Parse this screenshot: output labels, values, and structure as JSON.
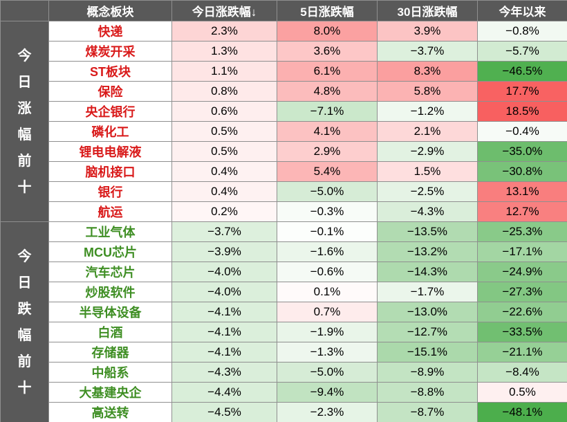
{
  "chart_data": {
    "type": "table",
    "columns": [
      "概念板块",
      "今日涨跌幅↓",
      "5日涨跌幅",
      "30日涨跌幅",
      "今年以来"
    ],
    "sorted_by": "今日涨跌幅",
    "sort_direction": "desc",
    "value_format": "percent_one_decimal",
    "groups": [
      {
        "label": "今日涨幅前十",
        "rows": [
          {
            "name": "快递",
            "values": [
              2.3,
              8.0,
              3.9,
              -0.8
            ]
          },
          {
            "name": "煤炭开采",
            "values": [
              1.3,
              3.6,
              -3.7,
              -5.7
            ]
          },
          {
            "name": "ST板块",
            "values": [
              1.1,
              6.1,
              8.3,
              -46.5
            ]
          },
          {
            "name": "保险",
            "values": [
              0.8,
              4.8,
              5.8,
              17.7
            ]
          },
          {
            "name": "央企银行",
            "values": [
              0.6,
              -7.1,
              -1.2,
              18.5
            ]
          },
          {
            "name": "磷化工",
            "values": [
              0.5,
              4.1,
              2.1,
              -0.4
            ]
          },
          {
            "name": "锂电电解液",
            "values": [
              0.5,
              2.9,
              -2.9,
              -35.0
            ]
          },
          {
            "name": "脑机接口",
            "values": [
              0.4,
              5.4,
              1.5,
              -30.8
            ]
          },
          {
            "name": "银行",
            "values": [
              0.4,
              -5.0,
              -2.5,
              13.1
            ]
          },
          {
            "name": "航运",
            "values": [
              0.2,
              -0.3,
              -4.3,
              12.7
            ]
          }
        ]
      },
      {
        "label": "今日跌幅前十",
        "rows": [
          {
            "name": "工业气体",
            "values": [
              -3.7,
              -0.1,
              -13.5,
              -25.3
            ]
          },
          {
            "name": "MCU芯片",
            "values": [
              -3.9,
              -1.6,
              -13.2,
              -17.1
            ]
          },
          {
            "name": "汽车芯片",
            "values": [
              -4.0,
              -0.6,
              -14.3,
              -24.9
            ]
          },
          {
            "name": "炒股软件",
            "values": [
              -4.0,
              0.1,
              -1.7,
              -27.3
            ]
          },
          {
            "name": "半导体设备",
            "values": [
              -4.1,
              0.7,
              -13.0,
              -22.6
            ]
          },
          {
            "name": "白酒",
            "values": [
              -4.1,
              -1.9,
              -12.7,
              -33.5
            ]
          },
          {
            "name": "存储器",
            "values": [
              -4.1,
              -1.3,
              -15.1,
              -21.1
            ]
          },
          {
            "name": "中船系",
            "values": [
              -4.3,
              -5.0,
              -8.9,
              -8.4
            ]
          },
          {
            "name": "大基建央企",
            "values": [
              -4.4,
              -9.4,
              -8.8,
              0.5
            ]
          },
          {
            "name": "高送转",
            "values": [
              -4.5,
              -2.3,
              -8.7,
              -48.1
            ]
          }
        ]
      }
    ]
  },
  "colors": {
    "header_bg": "#595959",
    "header_text": "#ffffff",
    "grid_line": "#8f8f8f",
    "gainer_name": "#d91a1a",
    "loser_name": "#3e8e23",
    "positive_max": "#f86060",
    "negative_max": "#4cae4c",
    "color_scale": {
      "positive_cap": 18,
      "negative_cap": 48,
      "curve": 0.65
    }
  }
}
